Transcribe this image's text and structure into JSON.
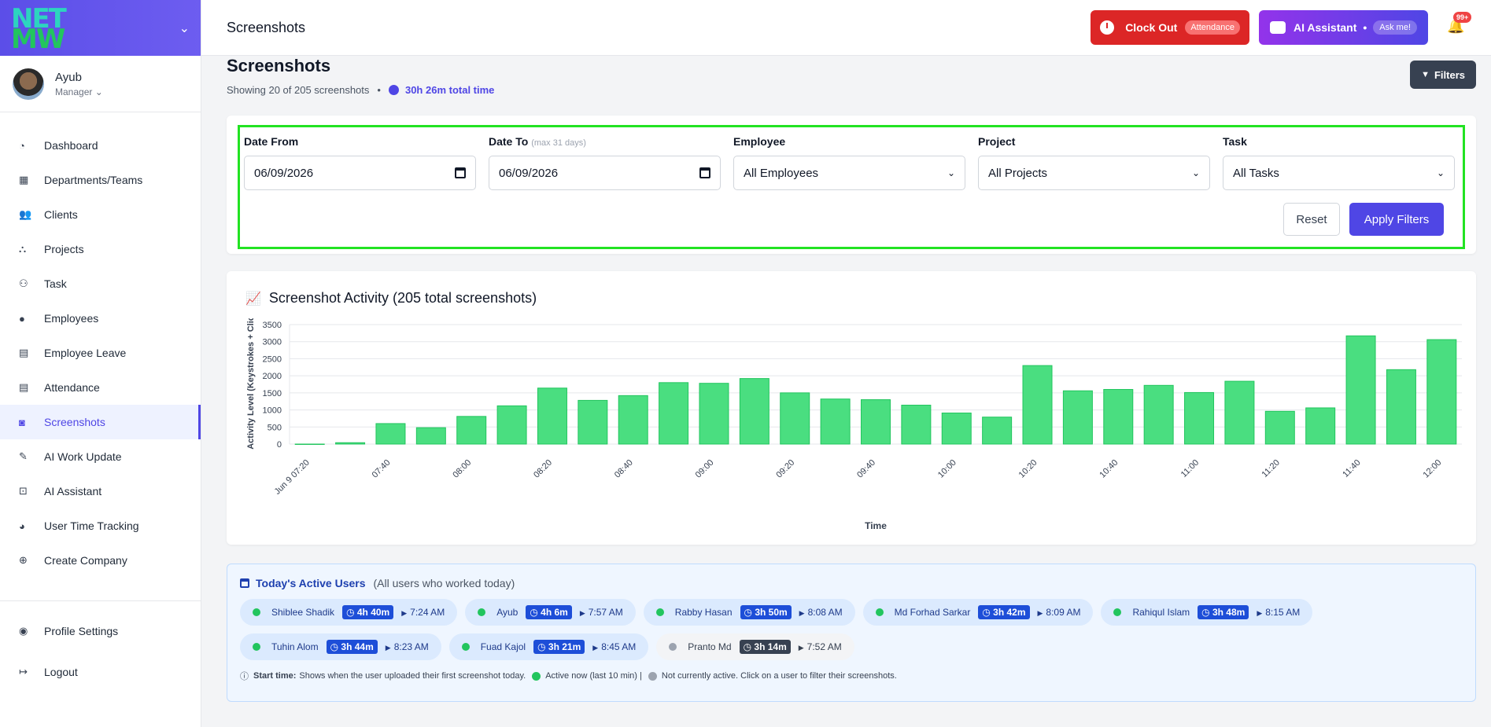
{
  "brand": {
    "logo_line1": "NET",
    "logo_line2": "MW"
  },
  "user": {
    "name": "Ayub",
    "role": "Manager"
  },
  "nav": [
    {
      "label": "Dashboard",
      "icon": "dashboard-icon",
      "glyph": "◔"
    },
    {
      "label": "Departments/Teams",
      "icon": "building-icon",
      "glyph": "▦"
    },
    {
      "label": "Clients",
      "icon": "users-icon",
      "glyph": "👥"
    },
    {
      "label": "Projects",
      "icon": "project-diagram-icon",
      "glyph": "⛬"
    },
    {
      "label": "Task",
      "icon": "people-group-icon",
      "glyph": "⚇"
    },
    {
      "label": "Employees",
      "icon": "user-icon",
      "glyph": "●"
    },
    {
      "label": "Employee Leave",
      "icon": "calendar-x-icon",
      "glyph": "▤"
    },
    {
      "label": "Attendance",
      "icon": "calendar-check-icon",
      "glyph": "▤"
    },
    {
      "label": "Screenshots",
      "icon": "camera-icon",
      "glyph": "◙"
    },
    {
      "label": "AI Work Update",
      "icon": "pen-icon",
      "glyph": "✎"
    },
    {
      "label": "AI Assistant",
      "icon": "robot-icon",
      "glyph": "⊡"
    },
    {
      "label": "User Time Tracking",
      "icon": "user-clock-icon",
      "glyph": "◕"
    },
    {
      "label": "Create Company",
      "icon": "plus-circle-icon",
      "glyph": "⊕"
    }
  ],
  "nav_bottom": [
    {
      "label": "Profile Settings",
      "icon": "user-circle-icon",
      "glyph": "◉"
    },
    {
      "label": "Logout",
      "icon": "logout-icon",
      "glyph": "↦"
    }
  ],
  "header": {
    "title": "Screenshots",
    "clock_out_label": "Clock Out",
    "clock_out_pill": "Attendance",
    "ai_label": "AI Assistant",
    "ai_sep": "•",
    "ai_pill": "Ask me!",
    "notif_count": "99+"
  },
  "page": {
    "title": "Screenshots",
    "showing": "Showing 20 of 205 screenshots",
    "dot": "•",
    "total_time": "30h 26m total time",
    "filters_label": "Filters"
  },
  "filters": {
    "date_from_label": "Date From",
    "date_from_value": "06/09/2026",
    "date_to_label": "Date To",
    "date_to_hint": "(max 31 days)",
    "date_to_value": "06/09/2026",
    "employee_label": "Employee",
    "employee_value": "All Employees",
    "project_label": "Project",
    "project_value": "All Projects",
    "task_label": "Task",
    "task_value": "All Tasks",
    "reset_label": "Reset",
    "apply_label": "Apply Filters"
  },
  "chart_title": "Screenshot Activity (205 total screenshots)",
  "chart_data": {
    "type": "bar",
    "xlabel": "Time",
    "ylabel": "Activity Level (Keystrokes + Clicks)",
    "ylim": [
      0,
      3500
    ],
    "yticks": [
      0,
      500,
      1000,
      1500,
      2000,
      2500,
      3000,
      3500
    ],
    "color": "#4ade80",
    "categories": [
      "Jun 9 07:20",
      "07:30",
      "07:40",
      "07:50",
      "08:00",
      "08:10",
      "08:20",
      "08:30",
      "08:40",
      "08:50",
      "09:00",
      "09:10",
      "09:20",
      "09:30",
      "09:40",
      "09:50",
      "10:00",
      "10:10",
      "10:20",
      "10:30",
      "10:40",
      "10:50",
      "11:00",
      "11:10",
      "11:20",
      "11:30",
      "11:40",
      "11:50",
      "12:00"
    ],
    "tick_labels": [
      "Jun 9 07:20",
      "",
      "07:40",
      "",
      "08:00",
      "",
      "08:20",
      "",
      "08:40",
      "",
      "09:00",
      "",
      "09:20",
      "",
      "09:40",
      "",
      "10:00",
      "",
      "10:20",
      "",
      "10:40",
      "",
      "11:00",
      "",
      "11:20",
      "",
      "11:40",
      "",
      "12:00"
    ],
    "values": [
      0,
      40,
      600,
      480,
      810,
      1120,
      1640,
      1280,
      1420,
      1800,
      1780,
      1920,
      1500,
      1320,
      1300,
      1140,
      910,
      790,
      2300,
      1560,
      1600,
      1720,
      1510,
      1840,
      960,
      1060,
      3170,
      2180,
      3060
    ],
    "grid": true,
    "legend": "none"
  },
  "active_users": {
    "title": "Today's Active Users",
    "subtitle": "(All users who worked today)",
    "users": [
      {
        "name": "Shiblee Shadik",
        "duration": "4h 40m",
        "start": "7:24 AM",
        "active": true
      },
      {
        "name": "Ayub",
        "duration": "4h 6m",
        "start": "7:57 AM",
        "active": true
      },
      {
        "name": "Rabby Hasan",
        "duration": "3h 50m",
        "start": "8:08 AM",
        "active": true
      },
      {
        "name": "Md Forhad Sarkar",
        "duration": "3h 42m",
        "start": "8:09 AM",
        "active": true
      },
      {
        "name": "Rahiqul Islam",
        "duration": "3h 48m",
        "start": "8:15 AM",
        "active": true
      },
      {
        "name": "Tuhin Alom",
        "duration": "3h 44m",
        "start": "8:23 AM",
        "active": true
      },
      {
        "name": "Fuad Kajol",
        "duration": "3h 21m",
        "start": "8:45 AM",
        "active": true
      },
      {
        "name": "Pranto Md",
        "duration": "3h 14m",
        "start": "7:52 AM",
        "active": false
      }
    ],
    "legend_start_label": "Start time:",
    "legend_start_text": "Shows when the user uploaded their first screenshot today.",
    "legend_active_text": "Active now (last 10 min) |",
    "legend_inactive_text": "Not currently active. Click on a user to filter their screenshots.",
    "active_color": "#22c55e",
    "inactive_color": "#9ca3af"
  }
}
